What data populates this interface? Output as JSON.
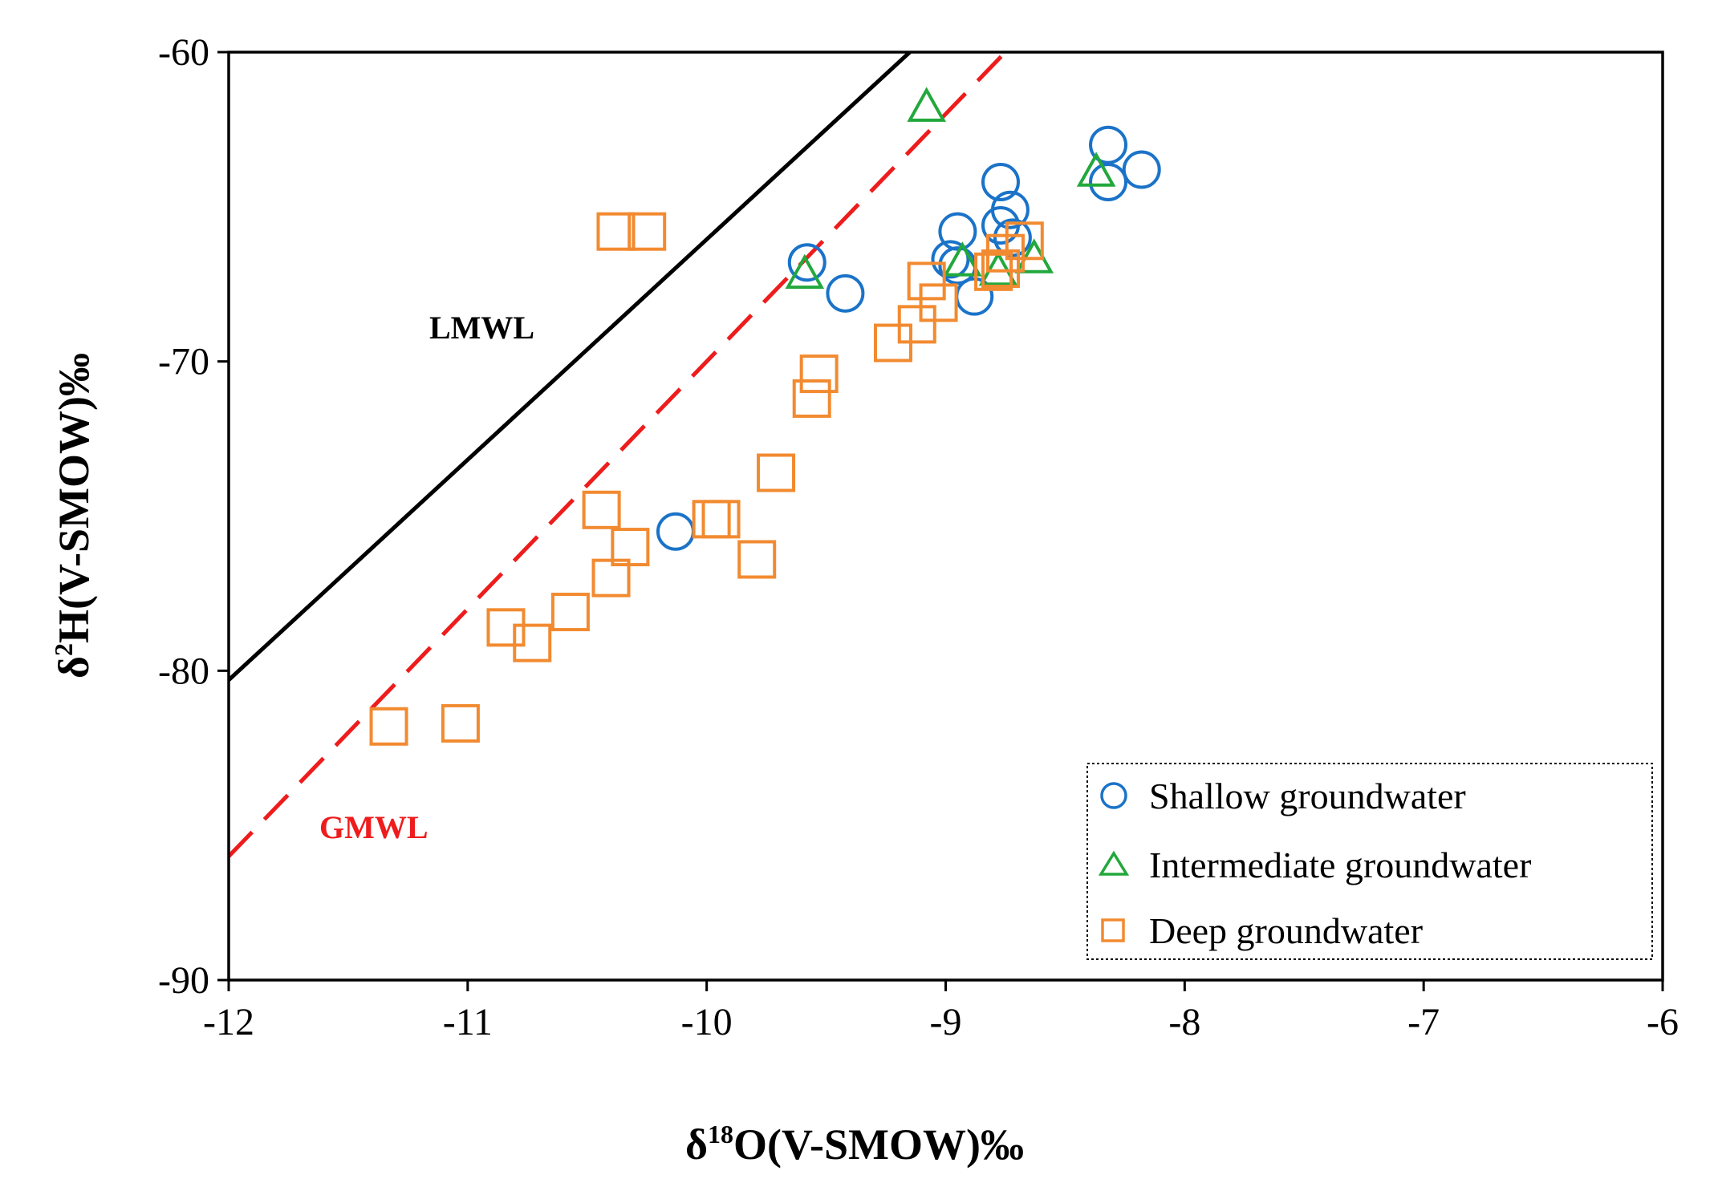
{
  "chart_data": {
    "type": "scatter",
    "xlabel": "δ18O(V-SMOW)‰",
    "ylabel": "δ2H(V-SMOW)‰",
    "xlim": [
      -12,
      -6
    ],
    "ylim": [
      -90,
      -60
    ],
    "x_ticks": [
      -12,
      -11,
      -10,
      -9,
      -8,
      -7,
      -6
    ],
    "y_ticks": [
      -90,
      -80,
      -70,
      -60
    ],
    "x_tick_labels": [
      "-12",
      "-11",
      "-10",
      "-9",
      "-8",
      "-7",
      "-6"
    ],
    "y_tick_labels": [
      "-90",
      "-80",
      "-70",
      "-60"
    ],
    "grid": false,
    "legend_position": "bottom-right",
    "lines": [
      {
        "name": "LMWL",
        "color": "#000000",
        "dash": "solid",
        "x": [
          -12,
          -9.15
        ],
        "y": [
          -80.3,
          -60
        ]
      },
      {
        "name": "GMWL",
        "color": "#ee1c1c",
        "dash": "dashed",
        "x": [
          -12,
          -8.75
        ],
        "y": [
          -86,
          -60
        ]
      }
    ],
    "series": [
      {
        "name": "Shallow groundwater",
        "marker": "circle",
        "color": "#1a73c8",
        "points": [
          [
            -8.32,
            -63.0
          ],
          [
            -8.32,
            -64.2
          ],
          [
            -8.18,
            -63.8
          ],
          [
            -8.77,
            -64.2
          ],
          [
            -8.73,
            -65.1
          ],
          [
            -8.77,
            -65.6
          ],
          [
            -8.95,
            -65.8
          ],
          [
            -8.98,
            -66.7
          ],
          [
            -8.95,
            -66.9
          ],
          [
            -8.72,
            -66.0
          ],
          [
            -9.58,
            -66.8
          ],
          [
            -9.42,
            -67.8
          ],
          [
            -8.88,
            -67.9
          ],
          [
            -10.13,
            -75.5
          ]
        ]
      },
      {
        "name": "Intermediate groundwater",
        "marker": "triangle",
        "color": "#22a83c",
        "points": [
          [
            -9.08,
            -61.8
          ],
          [
            -8.37,
            -63.9
          ],
          [
            -9.59,
            -67.2
          ],
          [
            -8.93,
            -66.8
          ],
          [
            -8.78,
            -67.1
          ],
          [
            -8.63,
            -66.7
          ]
        ]
      },
      {
        "name": "Deep groundwater",
        "marker": "square",
        "color": "#f28a30",
        "points": [
          [
            -10.38,
            -65.8
          ],
          [
            -10.25,
            -65.8
          ],
          [
            -8.67,
            -66.1
          ],
          [
            -8.75,
            -66.5
          ],
          [
            -8.8,
            -67.1
          ],
          [
            -8.77,
            -67.0
          ],
          [
            -9.08,
            -67.4
          ],
          [
            -9.03,
            -68.1
          ],
          [
            -9.12,
            -68.8
          ],
          [
            -9.22,
            -69.4
          ],
          [
            -9.53,
            -70.4
          ],
          [
            -9.56,
            -71.2
          ],
          [
            -9.71,
            -73.6
          ],
          [
            -9.98,
            -75.1
          ],
          [
            -9.94,
            -75.1
          ],
          [
            -10.44,
            -74.8
          ],
          [
            -10.32,
            -76.0
          ],
          [
            -9.79,
            -76.4
          ],
          [
            -10.4,
            -77.0
          ],
          [
            -10.57,
            -78.1
          ],
          [
            -10.84,
            -78.6
          ],
          [
            -10.73,
            -79.1
          ],
          [
            -11.33,
            -81.8
          ],
          [
            -11.03,
            -81.7
          ]
        ]
      }
    ]
  }
}
